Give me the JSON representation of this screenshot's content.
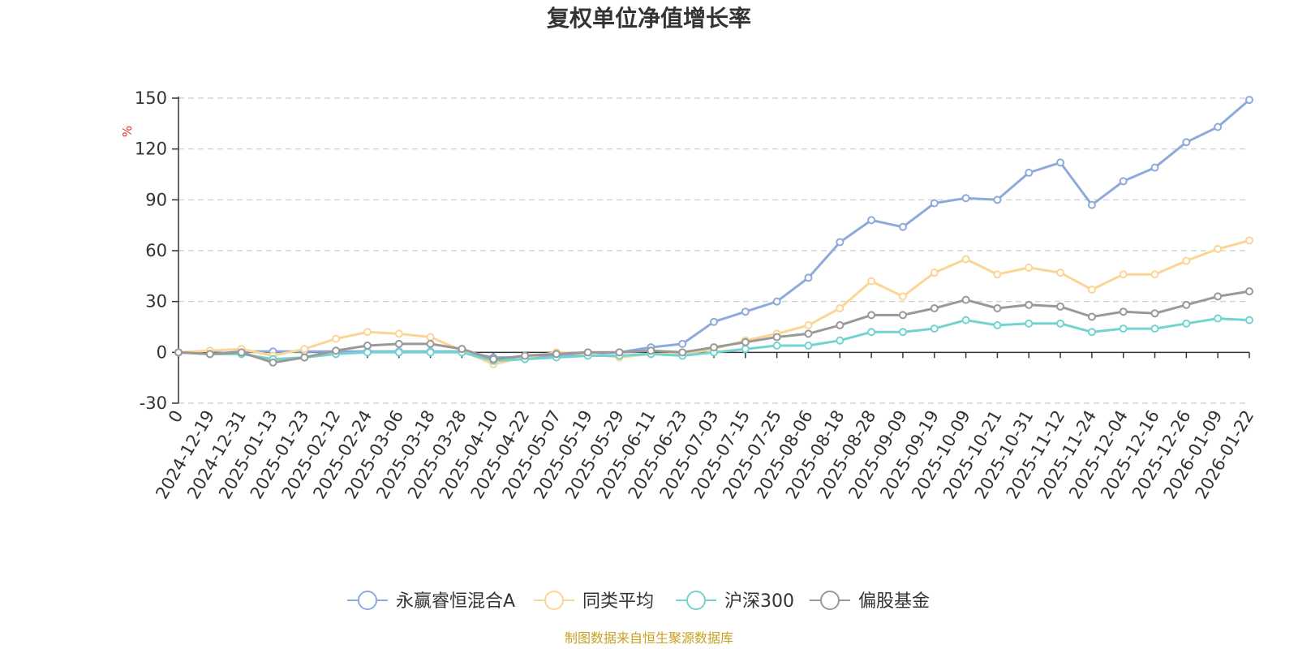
{
  "chart_data": {
    "type": "line",
    "title": "复权单位净值增长率",
    "ylabel": "%",
    "ylim": [
      -30,
      150
    ],
    "yticks": [
      -30,
      0,
      30,
      60,
      90,
      120,
      150
    ],
    "grid": true,
    "legend_position": "bottom",
    "source": "制图数据来自恒生聚源数据库",
    "x_tick_labels": [
      "0",
      "2024-12-19",
      "2024-12-31",
      "2025-01-13",
      "2025-01-23",
      "2025-02-12",
      "2025-02-24",
      "2025-03-06",
      "2025-03-18",
      "2025-03-28",
      "2025-04-10",
      "2025-04-22",
      "2025-05-07",
      "2025-05-19",
      "2025-05-29",
      "2025-06-11",
      "2025-06-23",
      "2025-07-03",
      "2025-07-15",
      "2025-07-25",
      "2025-08-06",
      "2025-08-18",
      "2025-08-28",
      "2025-09-09",
      "2025-09-19",
      "2025-10-09",
      "2025-10-21",
      "2025-10-31",
      "2025-11-12",
      "2025-11-24",
      "2025-12-04",
      "2025-12-16",
      "2025-12-26",
      "2026-01-09",
      "2026-01-22"
    ],
    "x": [
      "0",
      "2024-12-19",
      "2024-12-31",
      "2025-01-13",
      "2025-01-23",
      "2025-02-12",
      "2025-02-24",
      "2025-03-06",
      "2025-03-18",
      "2025-03-28",
      "2025-04-10",
      "2025-04-22",
      "2025-05-07",
      "2025-05-19",
      "2025-05-29",
      "2025-06-11",
      "2025-06-23",
      "2025-07-03",
      "2025-07-15",
      "2025-07-25",
      "2025-08-06",
      "2025-08-18",
      "2025-08-28",
      "2025-09-09",
      "2025-09-19",
      "2025-10-09",
      "2025-10-21",
      "2025-10-31",
      "2025-11-12",
      "2025-11-24",
      "2025-12-04",
      "2025-12-16",
      "2025-12-26",
      "2026-01-09",
      "2026-01-22"
    ],
    "series": [
      {
        "name": "永赢睿恒混合A",
        "color": "#8eaadb",
        "values": [
          0,
          -1,
          0.5,
          0.5,
          0.5,
          0.5,
          0.5,
          0.5,
          0.5,
          0.5,
          -3,
          -3,
          -2,
          -1,
          0,
          3,
          5,
          18,
          24,
          30,
          44,
          65,
          78,
          74,
          88,
          91,
          90,
          106,
          112,
          87,
          101,
          109,
          124,
          133,
          149
        ]
      },
      {
        "name": "同类平均",
        "color": "#fcd595",
        "values": [
          0,
          1,
          2,
          -2,
          2,
          8,
          12,
          11,
          9,
          1,
          -7,
          -3,
          0,
          -1,
          -3,
          -1,
          -1,
          2,
          7,
          11,
          16,
          26,
          42,
          33,
          47,
          55,
          46,
          50,
          47,
          37,
          46,
          46,
          54,
          61,
          66
        ]
      },
      {
        "name": "沪深300",
        "color": "#72d4d0",
        "values": [
          0,
          -1,
          -1,
          -4,
          -3,
          -1,
          0,
          0,
          0,
          0,
          -5,
          -4,
          -3,
          -2,
          -2,
          -1,
          -2,
          0,
          2,
          4,
          4,
          7,
          12,
          12,
          14,
          19,
          16,
          17,
          17,
          12,
          14,
          14,
          17,
          20,
          19
        ]
      },
      {
        "name": "偏股基金",
        "color": "#999999",
        "values": [
          0,
          -1,
          0,
          -6,
          -3,
          1,
          4,
          5,
          5,
          2,
          -4,
          -2,
          -1,
          0,
          0,
          1,
          0,
          3,
          6,
          9,
          11,
          16,
          22,
          22,
          26,
          31,
          26,
          28,
          27,
          21,
          24,
          23,
          28,
          33,
          36
        ]
      }
    ]
  }
}
